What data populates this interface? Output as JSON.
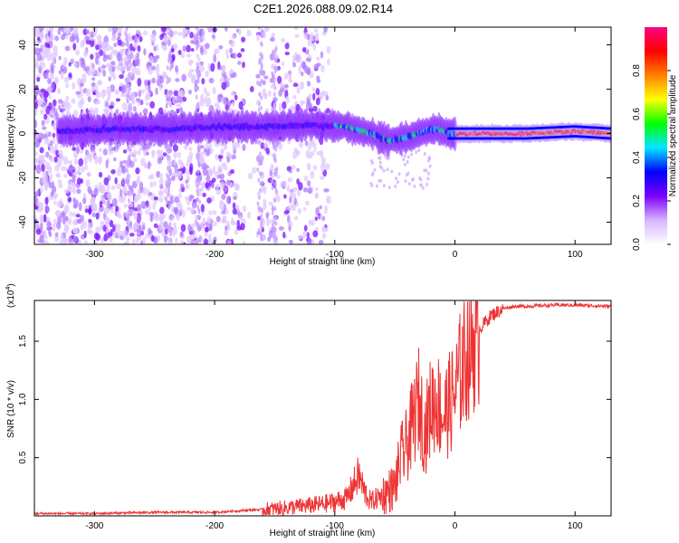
{
  "title": "C2E1.2026.088.09.02.R14",
  "chart_data": [
    {
      "type": "heatmap",
      "title": "",
      "xlabel": "Height of straight line (km)",
      "ylabel": "Frequency (Hz)",
      "xlim": [
        -350,
        130
      ],
      "ylim": [
        -50,
        48
      ],
      "xticks": [
        -300,
        -200,
        -100,
        0,
        100
      ],
      "yticks": [
        -40,
        -20,
        0,
        20,
        40
      ],
      "colorbar": {
        "label": "Normalized spectral amplitude",
        "range": [
          0,
          1
        ],
        "ticks": [
          "0.0",
          "0.2",
          "0.4",
          "0.6",
          "0.8"
        ],
        "tick_values": [
          0,
          0.2,
          0.4,
          0.6,
          0.8
        ],
        "colors": [
          "#ffffff",
          "#d8b4ff",
          "#7a00ff",
          "#0000ff",
          "#00e5ff",
          "#00ff00",
          "#ffff00",
          "#ff8000",
          "#ff0000",
          "#ff0080"
        ]
      },
      "ridge": [
        {
          "x": -330,
          "y": 1
        },
        {
          "x": -280,
          "y": 2
        },
        {
          "x": -240,
          "y": 2
        },
        {
          "x": -200,
          "y": 3
        },
        {
          "x": -160,
          "y": 3
        },
        {
          "x": -120,
          "y": 4
        },
        {
          "x": -90,
          "y": 3
        },
        {
          "x": -70,
          "y": 0
        },
        {
          "x": -55,
          "y": -3
        },
        {
          "x": -40,
          "y": -2
        },
        {
          "x": -25,
          "y": 1
        },
        {
          "x": -15,
          "y": 2
        },
        {
          "x": -5,
          "y": 0
        },
        {
          "x": 20,
          "y": 0
        },
        {
          "x": 60,
          "y": 0
        },
        {
          "x": 100,
          "y": 1
        },
        {
          "x": 130,
          "y": 0
        }
      ]
    },
    {
      "type": "line",
      "title": "",
      "xlabel": "Height of straight line (km)",
      "ylabel": "SNR (10 * v/v)",
      "yscale_label": "(x10",
      "yscale_exp": "4",
      "yscale_close": ")",
      "xlim": [
        -350,
        130
      ],
      "ylim": [
        0,
        1.85
      ],
      "xticks": [
        -300,
        -200,
        -100,
        0,
        100
      ],
      "yticks": [
        0.5,
        1.0,
        1.5
      ],
      "ytick_labels": [
        "0.5",
        "1.0",
        "1.5"
      ],
      "color": "#ee3333",
      "series": [
        {
          "name": "SNR",
          "x": [
            -350,
            -300,
            -250,
            -200,
            -170,
            -150,
            -130,
            -110,
            -100,
            -90,
            -85,
            -80,
            -75,
            -70,
            -60,
            -50,
            -45,
            -40,
            -35,
            -30,
            -25,
            -20,
            -15,
            -10,
            -5,
            0,
            5,
            10,
            20,
            30,
            40,
            50,
            60,
            80,
            100,
            130
          ],
          "y": [
            0.02,
            0.02,
            0.03,
            0.03,
            0.05,
            0.06,
            0.08,
            0.1,
            0.12,
            0.15,
            0.25,
            0.35,
            0.2,
            0.12,
            0.18,
            0.25,
            0.5,
            0.6,
            0.8,
            1.0,
            0.7,
            0.95,
            1.0,
            0.85,
            0.95,
            1.05,
            1.25,
            1.4,
            1.6,
            1.72,
            1.78,
            1.8,
            1.8,
            1.81,
            1.81,
            1.8
          ]
        }
      ]
    }
  ]
}
